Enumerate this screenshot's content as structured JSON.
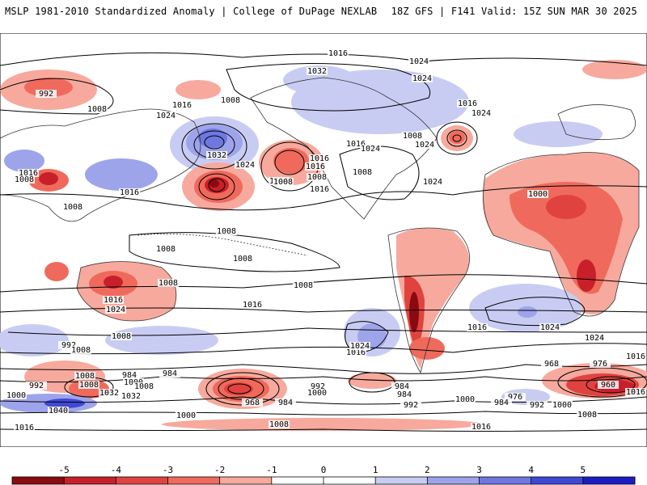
{
  "header": {
    "left_title": "MSLP 1981-2010 Standardized Anomaly | College of DuPage NEXLAB",
    "right_title": "18Z GFS | F141 Valid: 15Z SUN MAR 30 2025"
  },
  "colors": {
    "neg5": "#8a0a12",
    "neg4": "#c8202a",
    "neg3": "#e0433f",
    "neg2": "#ef6a5c",
    "neg1": "#f7a99d",
    "pos1": "#c9ccf2",
    "pos2": "#9ea4ea",
    "pos3": "#6f78e0",
    "pos4": "#3f49d6",
    "pos5": "#1d1dc4",
    "contour": "#000000",
    "land_border": "#333333"
  },
  "colorbar": {
    "ticks": [
      "-5",
      "-4",
      "-3",
      "-2",
      "-1",
      "0",
      "1",
      "2",
      "3",
      "4",
      "5"
    ]
  },
  "isobar_labels": [
    "1016",
    "1024",
    "1032",
    "1024",
    "992",
    "1008",
    "1016",
    "1008",
    "1016",
    "1024",
    "1024",
    "1032",
    "1024",
    "1016",
    "1016",
    "1008",
    "1016",
    "1024",
    "1008",
    "1024",
    "1016",
    "1008",
    "1008",
    "1016",
    "1024",
    "1016",
    "1008",
    "1016",
    "1008",
    "1008",
    "1000",
    "1008",
    "1008",
    "1008",
    "1016",
    "1024",
    "1016",
    "1008",
    "1016",
    "1016",
    "1024",
    "1024",
    "1016",
    "992",
    "1008",
    "1000",
    "1008",
    "1008",
    "1032",
    "984",
    "984",
    "968",
    "984",
    "992",
    "1000",
    "1000",
    "984",
    "992",
    "976",
    "968",
    "984",
    "960",
    "1016",
    "992",
    "1000",
    "1008",
    "1040",
    "1000",
    "992",
    "1008",
    "1016",
    "1000",
    "1008",
    "984",
    "976",
    "1024",
    "1016",
    "1032",
    "1016",
    "1008"
  ]
}
